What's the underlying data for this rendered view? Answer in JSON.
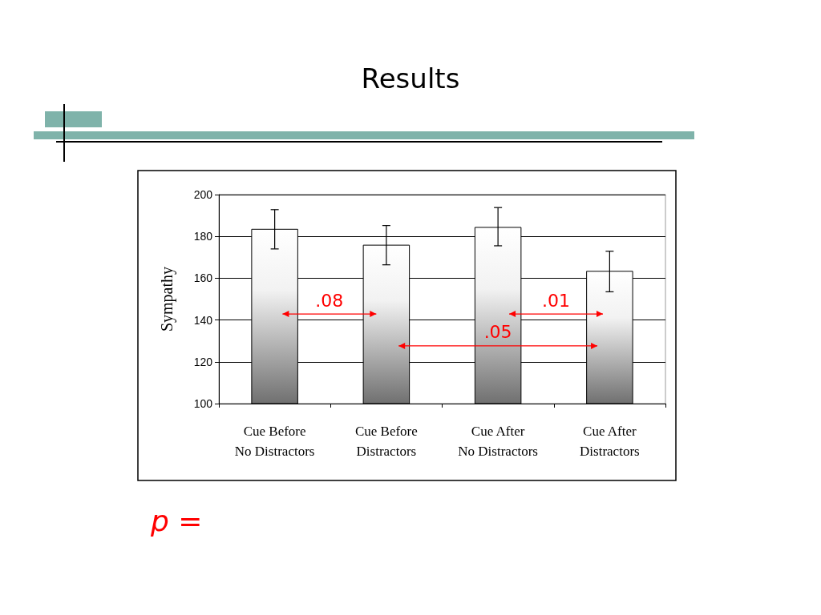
{
  "chart_data": {
    "type": "bar",
    "title": "Results",
    "ylabel": "Sympathy",
    "categories": [
      "Cue Before\nNo Distractors",
      "Cue Before\nDistractors",
      "Cue After\nNo Distractors",
      "Cue After\nDistractors"
    ],
    "values": [
      183.6,
      176.0,
      184.5,
      163.5
    ],
    "errors": [
      [
        174.0,
        192.8
      ],
      [
        166.4,
        185.2
      ],
      [
        175.5,
        193.8
      ],
      [
        153.5,
        172.9
      ]
    ],
    "ylim": [
      100,
      200
    ],
    "yticks": [
      100,
      120,
      140,
      160,
      180,
      200
    ],
    "grid": "y",
    "annotations": [
      ".08",
      ".05",
      ".01",
      "p ="
    ]
  }
}
